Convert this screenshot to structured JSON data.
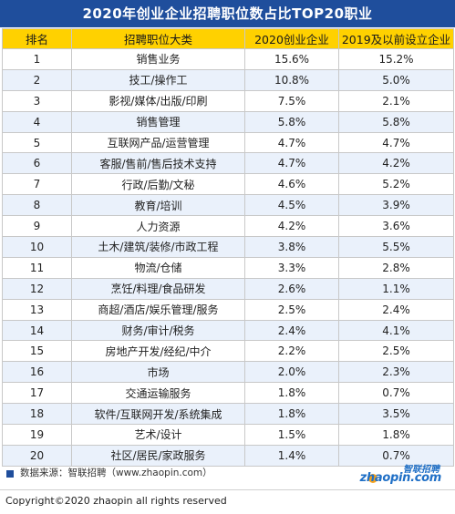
{
  "title": "2020年创业企业招聘职位数占比TOP20职业",
  "chart_data": {
    "type": "table",
    "columns": [
      "排名",
      "招聘职位大类",
      "2020创业企业",
      "2019及以前设立企业"
    ],
    "rows": [
      [
        "1",
        "销售业务",
        "15.6%",
        "15.2%"
      ],
      [
        "2",
        "技工/操作工",
        "10.8%",
        "5.0%"
      ],
      [
        "3",
        "影视/媒体/出版/印刷",
        "7.5%",
        "2.1%"
      ],
      [
        "4",
        "销售管理",
        "5.8%",
        "5.8%"
      ],
      [
        "5",
        "互联网产品/运营管理",
        "4.7%",
        "4.7%"
      ],
      [
        "6",
        "客服/售前/售后技术支持",
        "4.7%",
        "4.2%"
      ],
      [
        "7",
        "行政/后勤/文秘",
        "4.6%",
        "5.2%"
      ],
      [
        "8",
        "教育/培训",
        "4.5%",
        "3.9%"
      ],
      [
        "9",
        "人力资源",
        "4.2%",
        "3.6%"
      ],
      [
        "10",
        "土木/建筑/装修/市政工程",
        "3.8%",
        "5.5%"
      ],
      [
        "11",
        "物流/仓储",
        "3.3%",
        "2.8%"
      ],
      [
        "12",
        "烹饪/料理/食品研发",
        "2.6%",
        "1.1%"
      ],
      [
        "13",
        "商超/酒店/娱乐管理/服务",
        "2.5%",
        "2.4%"
      ],
      [
        "14",
        "财务/审计/税务",
        "2.4%",
        "4.1%"
      ],
      [
        "15",
        "房地产开发/经纪/中介",
        "2.2%",
        "2.5%"
      ],
      [
        "16",
        "市场",
        "2.0%",
        "2.3%"
      ],
      [
        "17",
        "交通运输服务",
        "1.8%",
        "0.7%"
      ],
      [
        "18",
        "软件/互联网开发/系统集成",
        "1.8%",
        "3.5%"
      ],
      [
        "19",
        "艺术/设计",
        "1.5%",
        "1.8%"
      ],
      [
        "20",
        "社区/居民/家政服务",
        "1.4%",
        "0.7%"
      ]
    ]
  },
  "footer": {
    "source": "数据来源：智联招聘（www.zhaopin.com）",
    "logo_cn": "智联招聘",
    "logo_en": "zhaopin.com",
    "copyright": "Copyright©2020 zhaopin all rights reserved"
  },
  "colors": {
    "title_bg": "#1f4e9c",
    "header_bg": "#ffd100",
    "alt_row_bg": "#eaf1fb",
    "brand": "#1f6fc6"
  },
  "icons": [
    "square-bullet-icon",
    "zhaopin-logo-icon"
  ]
}
